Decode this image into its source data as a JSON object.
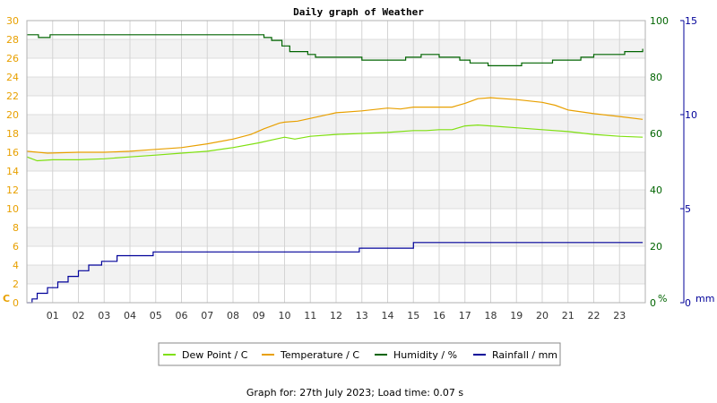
{
  "chart_data": {
    "type": "line",
    "title": "Daily graph of Weather",
    "footer": "Graph for: 27th July 2023; Load time: 0.07 s",
    "x_ticks": [
      "01",
      "02",
      "03",
      "04",
      "05",
      "06",
      "07",
      "08",
      "09",
      "10",
      "11",
      "12",
      "13",
      "14",
      "15",
      "16",
      "17",
      "18",
      "19",
      "20",
      "21",
      "22",
      "23"
    ],
    "x_range": [
      0,
      24
    ],
    "axes": {
      "temperature": {
        "unit_label": "C",
        "range": [
          0,
          30
        ],
        "ticks": [
          0,
          2,
          4,
          6,
          8,
          10,
          12,
          14,
          16,
          18,
          20,
          22,
          24,
          26,
          28,
          30
        ],
        "color": "#e8a000"
      },
      "humidity": {
        "unit_label": "%",
        "range": [
          0,
          100
        ],
        "ticks": [
          0,
          20,
          40,
          60,
          80,
          100
        ],
        "color": "#006400"
      },
      "rainfall": {
        "unit_label": "mm",
        "range": [
          0,
          15
        ],
        "ticks": [
          0,
          5,
          10,
          15
        ],
        "color": "#000099"
      }
    },
    "grid": true,
    "legend_position": "bottom",
    "series": [
      {
        "name": "Dew Point / C",
        "axis": "temperature",
        "color": "#7fe010",
        "x": [
          0,
          0.4,
          1,
          2,
          3,
          4,
          5,
          6,
          7,
          8,
          9,
          9.5,
          10,
          10.4,
          11,
          12,
          13,
          14,
          15,
          15.5,
          16,
          16.5,
          17,
          17.5,
          18,
          19,
          20,
          21,
          22,
          23,
          23.9
        ],
        "y": [
          15.5,
          15.1,
          15.2,
          15.2,
          15.3,
          15.5,
          15.7,
          15.9,
          16.1,
          16.5,
          17.0,
          17.3,
          17.6,
          17.4,
          17.7,
          17.9,
          18.0,
          18.1,
          18.3,
          18.3,
          18.4,
          18.4,
          18.8,
          18.9,
          18.8,
          18.6,
          18.4,
          18.2,
          17.9,
          17.7,
          17.6
        ]
      },
      {
        "name": "Temperature / C",
        "axis": "temperature",
        "color": "#e8a000",
        "x": [
          0,
          0.8,
          2,
          3,
          4,
          5,
          6,
          7,
          8,
          8.7,
          9.2,
          9.8,
          10,
          10.5,
          11,
          11.5,
          12,
          13,
          14,
          14.5,
          15,
          16,
          16.5,
          17,
          17.5,
          18,
          19,
          20,
          20.5,
          21,
          22,
          23,
          23.9
        ],
        "y": [
          16.1,
          15.9,
          16.0,
          16.0,
          16.1,
          16.3,
          16.5,
          16.9,
          17.4,
          17.9,
          18.5,
          19.1,
          19.2,
          19.3,
          19.6,
          19.9,
          20.2,
          20.4,
          20.7,
          20.6,
          20.8,
          20.8,
          20.8,
          21.2,
          21.7,
          21.8,
          21.6,
          21.3,
          21.0,
          20.5,
          20.1,
          19.8,
          19.5
        ]
      },
      {
        "name": "Humidity / %",
        "axis": "humidity",
        "color": "#006400",
        "x": [
          0,
          0.45,
          0.9,
          8.9,
          9.2,
          9.5,
          9.9,
          10.2,
          10.5,
          10.9,
          11.2,
          12.1,
          13.0,
          14.3,
          14.7,
          15.3,
          16.0,
          16.8,
          17.2,
          17.9,
          18.5,
          19.2,
          19.9,
          20.4,
          21.0,
          21.5,
          22.0,
          22.5,
          23.2,
          23.9
        ],
        "y": [
          95,
          94,
          95,
          95,
          94,
          93,
          91,
          89,
          89,
          88,
          87,
          87,
          86,
          86,
          87,
          88,
          87,
          86,
          85,
          84,
          84,
          85,
          85,
          86,
          86,
          87,
          88,
          88,
          89,
          90
        ]
      },
      {
        "name": "Rainfall / mm",
        "axis": "rainfall",
        "color": "#000099",
        "step": true,
        "x": [
          0,
          0.2,
          0.4,
          0.8,
          1.2,
          1.6,
          2.0,
          2.4,
          2.9,
          3.5,
          4.9,
          12.9,
          15.0,
          23.9
        ],
        "y": [
          0,
          0.2,
          0.5,
          0.8,
          1.1,
          1.4,
          1.7,
          2.0,
          2.2,
          2.5,
          2.7,
          2.9,
          3.2,
          3.2
        ]
      }
    ]
  }
}
